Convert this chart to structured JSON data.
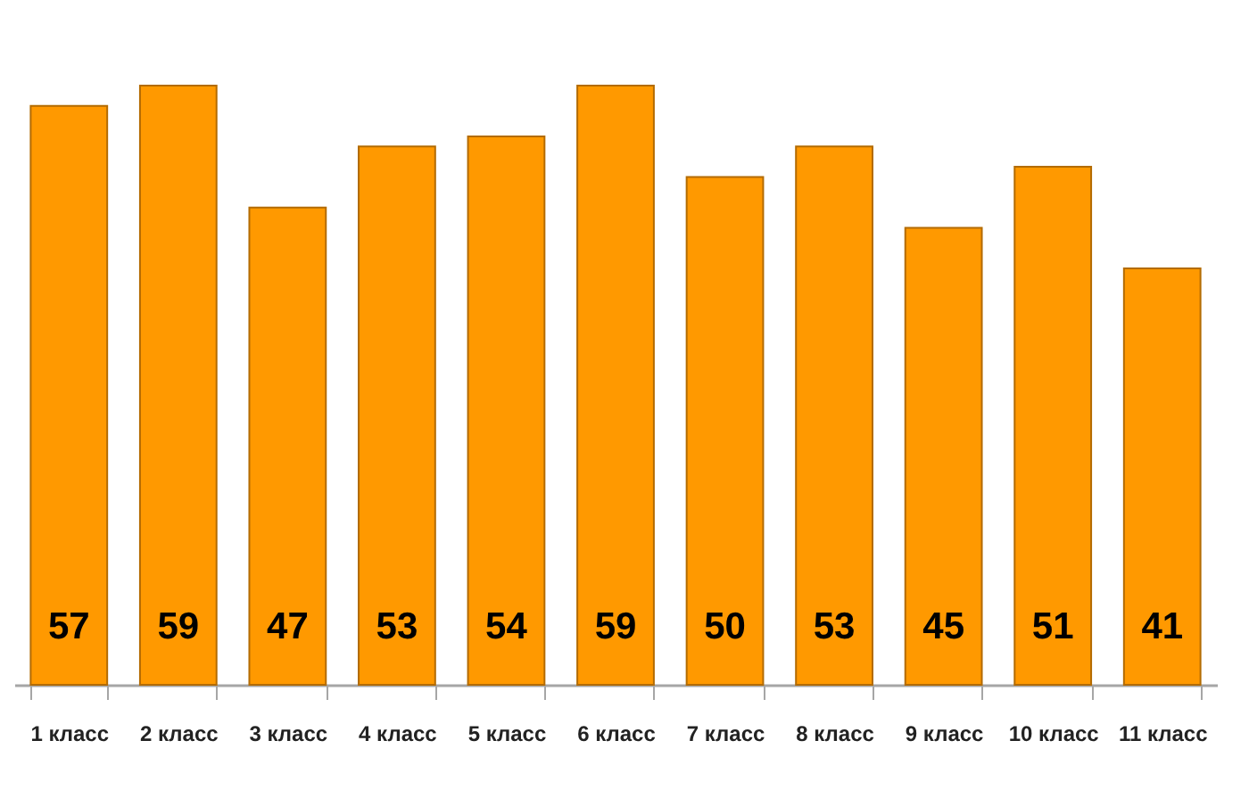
{
  "chart_data": {
    "type": "bar",
    "categories": [
      "1 класс",
      "2 класс",
      "3 класс",
      "4 класс",
      "5 класс",
      "6 класс",
      "7 класс",
      "8 класс",
      "9 класс",
      "10 класс",
      "11 класс"
    ],
    "values": [
      57,
      59,
      47,
      53,
      54,
      59,
      50,
      53,
      45,
      51,
      41
    ],
    "color": "#ff9900",
    "data_labels": true,
    "tick_labels": "x"
  }
}
